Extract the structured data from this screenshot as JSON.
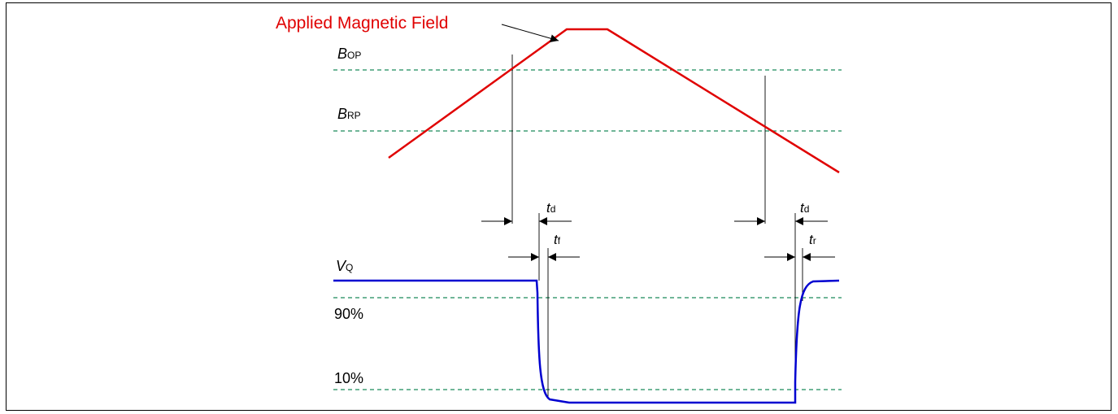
{
  "title": "Applied Magnetic Field",
  "levels": {
    "bop": {
      "main": "B",
      "sub": "OP"
    },
    "brp": {
      "main": "B",
      "sub": "RP"
    },
    "vq": {
      "main": "V",
      "sub": "Q"
    },
    "p90": "90%",
    "p10": "10%"
  },
  "timings": {
    "td_fall": {
      "main": "t",
      "sub": "d"
    },
    "tf": {
      "main": "t",
      "sub": "f"
    },
    "td_rise": {
      "main": "t",
      "sub": "d"
    },
    "tr": {
      "main": "t",
      "sub": "r"
    }
  },
  "colors": {
    "field": "#e00000",
    "output": "#0000d0",
    "threshold": "#1a8a5a",
    "marker": "#000000"
  }
}
